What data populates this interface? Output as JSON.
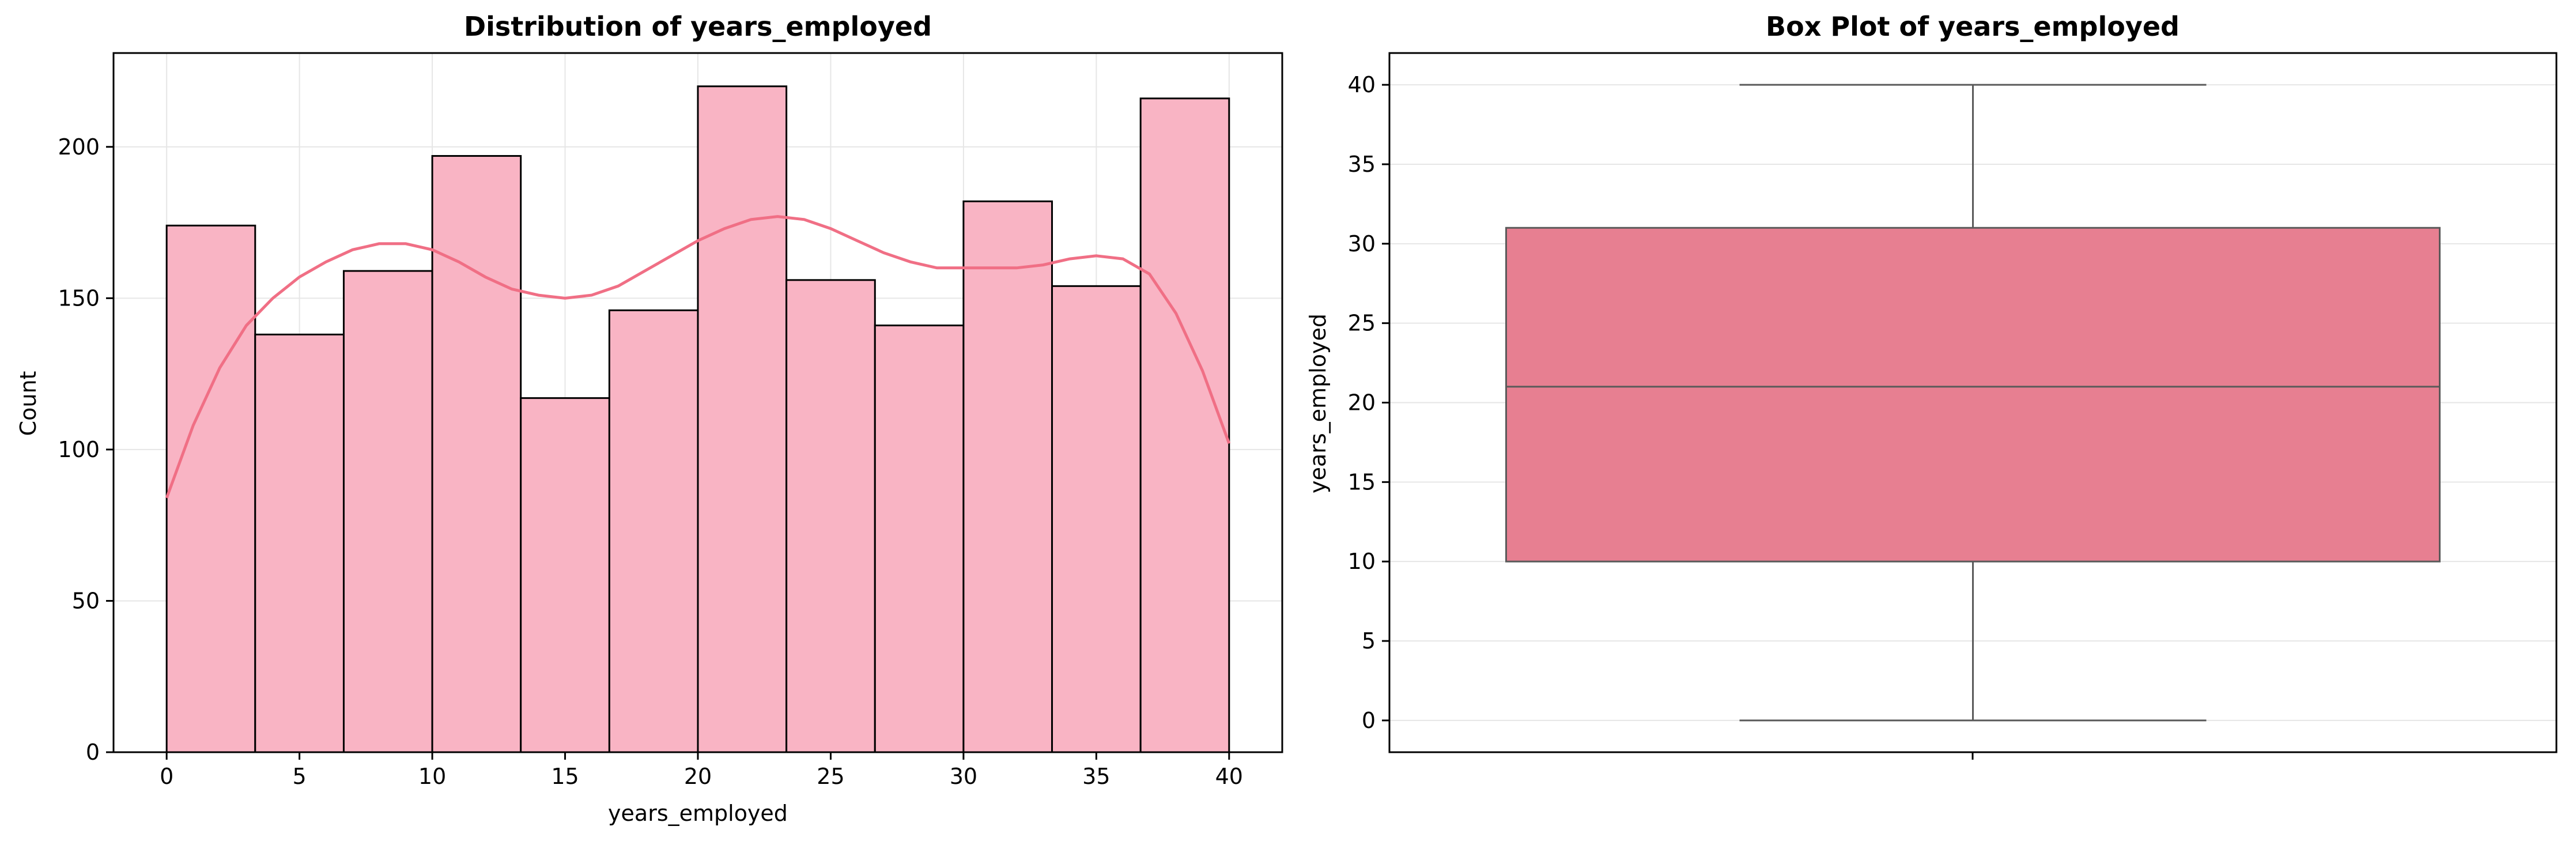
{
  "chart_data": [
    {
      "type": "bar",
      "subtype": "histogram-with-kde",
      "title": "Distribution of years_employed",
      "xlabel": "years_employed",
      "ylabel": "Count",
      "xlim": [
        -2,
        42
      ],
      "ylim": [
        0,
        231
      ],
      "xticks": [
        0,
        5,
        10,
        15,
        20,
        25,
        30,
        35,
        40
      ],
      "yticks": [
        0,
        50,
        100,
        150,
        200
      ],
      "grid": true,
      "bin_edges": [
        0,
        3.333,
        6.667,
        10,
        13.333,
        16.667,
        20,
        23.333,
        26.667,
        30,
        33.333,
        36.667,
        40
      ],
      "values": [
        174,
        138,
        159,
        197,
        117,
        146,
        220,
        156,
        141,
        182,
        154,
        216
      ],
      "bar_color": "#f9b4c4",
      "edge_color": "#000000",
      "kde": {
        "color": "#f06f85",
        "x": [
          0,
          1,
          2,
          3,
          4,
          5,
          6,
          7,
          8,
          9,
          10,
          11,
          12,
          13,
          14,
          15,
          16,
          17,
          18,
          19,
          20,
          21,
          22,
          23,
          24,
          25,
          26,
          27,
          28,
          29,
          30,
          31,
          32,
          33,
          34,
          35,
          36,
          37,
          38,
          39,
          40
        ],
        "y": [
          84,
          108,
          127,
          141,
          150,
          157,
          162,
          166,
          168,
          168,
          166,
          162,
          157,
          153,
          151,
          150,
          151,
          154,
          159,
          164,
          169,
          173,
          176,
          177,
          176,
          173,
          169,
          165,
          162,
          160,
          160,
          160,
          160,
          161,
          163,
          164,
          163,
          158,
          145,
          126,
          102
        ]
      }
    },
    {
      "type": "box",
      "title": "Box Plot of years_employed",
      "xlabel": "",
      "ylabel": "years_employed",
      "ylim": [
        -2,
        42
      ],
      "yticks": [
        0,
        5,
        10,
        15,
        20,
        25,
        30,
        35,
        40
      ],
      "grid": true,
      "stats": {
        "min": 0,
        "q1": 10,
        "median": 21,
        "q3": 31,
        "max": 40
      },
      "box_color": "#e77f91",
      "line_color": "#5a5a5a"
    }
  ]
}
